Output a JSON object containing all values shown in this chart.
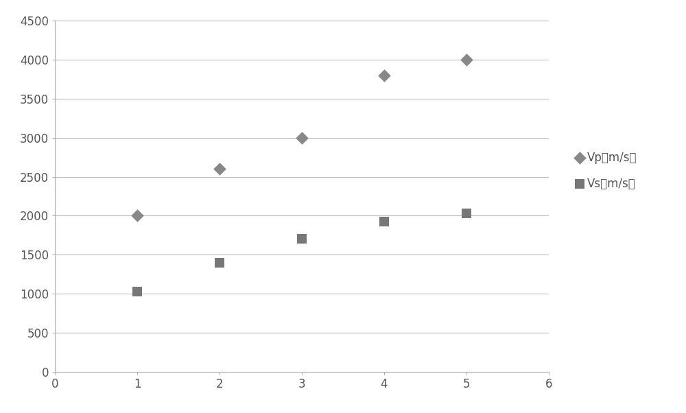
{
  "vp_x": [
    1,
    2,
    3,
    4,
    5
  ],
  "vp_y": [
    2000,
    2600,
    3000,
    3800,
    4000
  ],
  "vs_x": [
    1,
    2,
    3,
    4,
    5
  ],
  "vs_y": [
    1030,
    1400,
    1700,
    1920,
    2030
  ],
  "vp_color": "#888888",
  "vs_color": "#777777",
  "xlim": [
    0,
    6
  ],
  "ylim": [
    0,
    4500
  ],
  "xticks": [
    0,
    1,
    2,
    3,
    4,
    5,
    6
  ],
  "yticks": [
    0,
    500,
    1000,
    1500,
    2000,
    2500,
    3000,
    3500,
    4000,
    4500
  ],
  "legend_vp": "Vp（m/s）",
  "legend_vs": "Vs（m/s）",
  "grid_color": "#bbbbbb",
  "background_color": "#ffffff",
  "vp_marker_size": 90,
  "vs_marker_size": 110,
  "tick_color": "#555555",
  "tick_fontsize": 12,
  "spine_color": "#aaaaaa"
}
